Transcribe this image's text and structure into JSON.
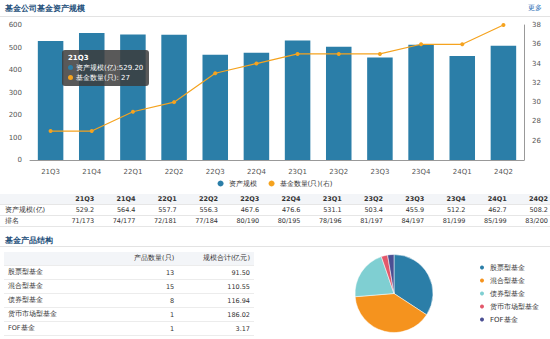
{
  "header": {
    "title": "基金公司基金资产规模",
    "more": "更多"
  },
  "chart_data": [
    {
      "type": "bar",
      "categories": [
        "21Q3",
        "21Q4",
        "22Q1",
        "22Q2",
        "22Q3",
        "22Q4",
        "23Q1",
        "23Q2",
        "23Q3",
        "23Q4",
        "24Q1",
        "24Q2"
      ],
      "series": [
        {
          "name": "资产规模",
          "type": "bar",
          "color": "#2b7ea8",
          "values": [
            529.2,
            564.4,
            557.7,
            556.3,
            467.6,
            476.6,
            531.1,
            503.4,
            455.9,
            512.2,
            462.7,
            508.2
          ]
        },
        {
          "name": "基金数量(只)(右)",
          "type": "line",
          "axis": "y2",
          "color": "#f5a31f",
          "marker": "circle",
          "values": [
            27,
            27,
            29,
            30,
            33,
            34,
            35,
            35,
            35,
            36,
            36,
            38
          ]
        }
      ],
      "ylim": [
        0,
        600
      ],
      "yticks": [
        0,
        100,
        200,
        300,
        400,
        500,
        600
      ],
      "y2lim": [
        24,
        38
      ],
      "y2ticks": [
        26,
        28,
        30,
        32,
        34,
        36,
        38
      ],
      "grid": false,
      "legend": "bottom",
      "annotations": [
        "21Q3",
        "资产规模(亿):529.20",
        "基金数量(只): 27"
      ]
    },
    {
      "type": "pie",
      "categories": [
        "股票型基金",
        "混合型基金",
        "债券型基金",
        "货币市场型基金",
        "FOF基金"
      ],
      "values": [
        13,
        15,
        8,
        1,
        1
      ],
      "colors": [
        "#2b7ea8",
        "#f5931e",
        "#7fcfd2",
        "#e3586b",
        "#4b4f93"
      ],
      "legend": "right",
      "data_labels": false
    }
  ],
  "quarter_table": {
    "columns": [
      "21Q3",
      "21Q4",
      "22Q1",
      "22Q2",
      "22Q3",
      "22Q4",
      "23Q1",
      "23Q2",
      "23Q3",
      "23Q4",
      "24Q1",
      "24Q2"
    ],
    "rows": [
      {
        "label": "资产规模(亿)",
        "cells": [
          "529.2",
          "564.4",
          "557.7",
          "556.3",
          "467.6",
          "476.6",
          "531.1",
          "503.4",
          "455.9",
          "512.2",
          "462.7",
          "508.2"
        ]
      },
      {
        "label": "排名",
        "cells": [
          "71/173",
          "74/177",
          "72/181",
          "77/184",
          "80/190",
          "80/195",
          "78/196",
          "81/197",
          "84/197",
          "81/199",
          "85/199",
          "83/200"
        ]
      }
    ]
  },
  "structure": {
    "title": "基金产品结构",
    "table": {
      "columns": [
        "产品数量(只)",
        "规模合计(亿元)"
      ],
      "rows": [
        [
          "股票型基金",
          "13",
          "91.50"
        ],
        [
          "混合型基金",
          "15",
          "110.55"
        ],
        [
          "债券型基金",
          "8",
          "116.94"
        ],
        [
          "货币市场型基金",
          "1",
          "186.02"
        ],
        [
          "FOF基金",
          "1",
          "3.17"
        ]
      ]
    }
  }
}
